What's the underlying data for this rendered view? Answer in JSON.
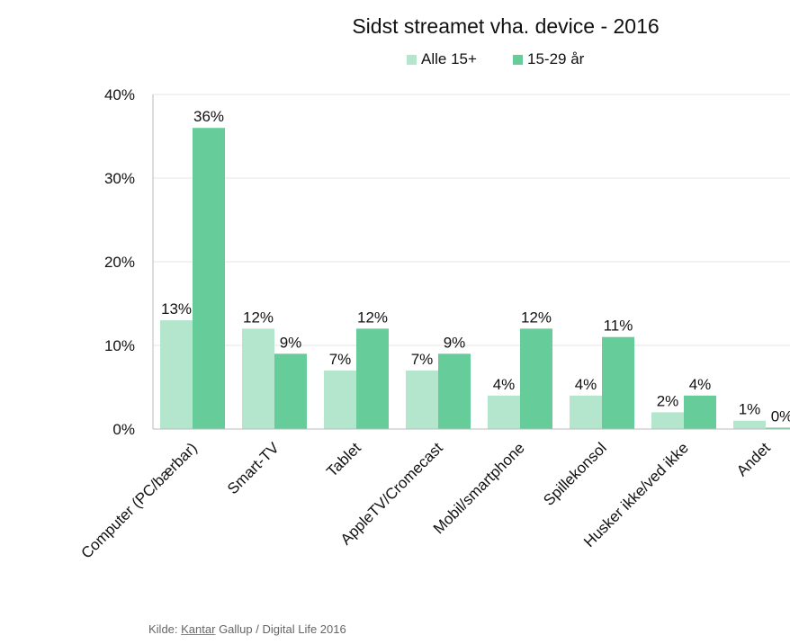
{
  "chart_data": {
    "type": "bar",
    "title": "Sidst streamet vha. device - 2016",
    "categories": [
      "Computer (PC/bærbar)",
      "Smart-TV",
      "Tablet",
      "AppleTV/Cromecast",
      "Mobil/smartphone",
      "Spillekonsol",
      "Husker ikke/ved ikke",
      "Andet"
    ],
    "series": [
      {
        "name": "Alle 15+",
        "color": "#b3e6cc",
        "values": [
          13,
          12,
          7,
          7,
          4,
          4,
          2,
          1
        ],
        "labels": [
          "13%",
          "12%",
          "7%",
          "7%",
          "4%",
          "4%",
          "2%",
          "1%"
        ]
      },
      {
        "name": "15-29 år",
        "color": "#66cc99",
        "values": [
          36,
          9,
          12,
          9,
          12,
          11,
          4,
          0
        ],
        "labels": [
          "36%",
          "9%",
          "12%",
          "9%",
          "12%",
          "11%",
          "4%",
          "0%"
        ]
      }
    ],
    "ylim": [
      0,
      40
    ],
    "yticks": [
      "0%",
      "10%",
      "20%",
      "30%",
      "40%"
    ],
    "grid": true,
    "legend_position": "top"
  },
  "source": {
    "prefix": "Kilde: ",
    "name": "Kantar",
    "rest": " Gallup / Digital Life 2016"
  },
  "colors": {
    "grid": "#e6e6e6",
    "axis": "#bbbbbb"
  }
}
